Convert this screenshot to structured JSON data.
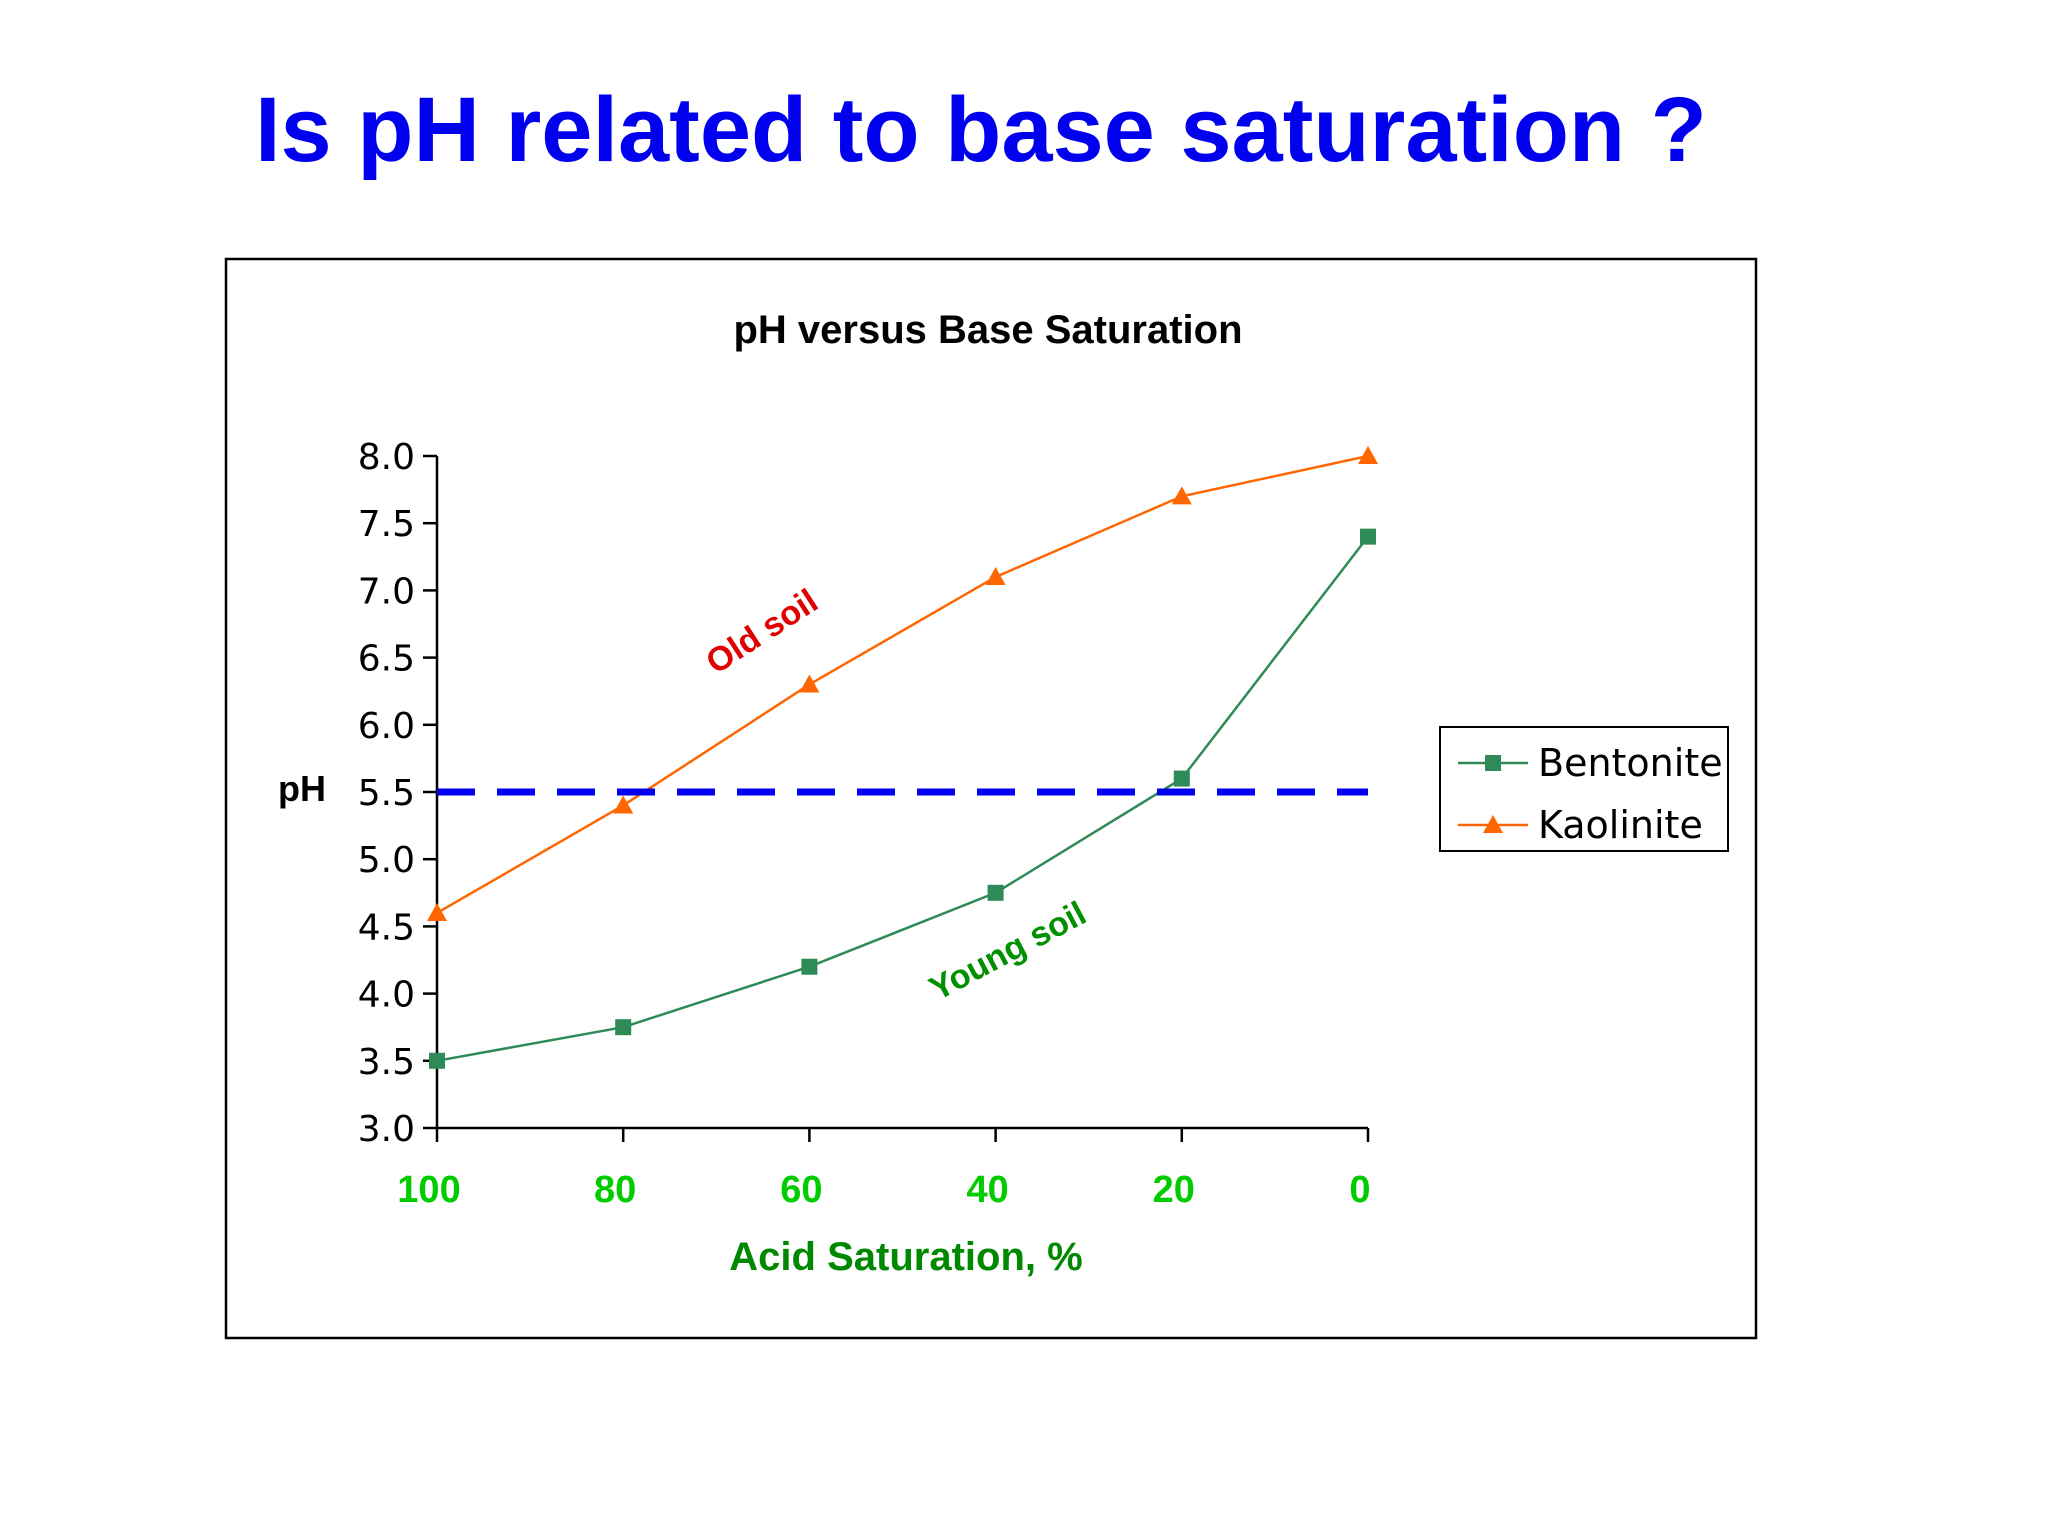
{
  "slide_title": "Is pH related to base saturation ?",
  "chart_data": {
    "type": "line",
    "title": "pH versus Base Saturation",
    "xlabel": "Acid Saturation, %",
    "ylabel": "pH",
    "x_reversed": true,
    "xlim": [
      0,
      100
    ],
    "ylim": [
      3.0,
      8.0
    ],
    "x": [
      100,
      80,
      60,
      40,
      20,
      0
    ],
    "x_tick_labels": [
      "100",
      "80",
      "60",
      "40",
      "20",
      "0"
    ],
    "y_tick_labels": [
      "3.0",
      "3.5",
      "4.0",
      "4.5",
      "5.0",
      "5.5",
      "6.0",
      "6.5",
      "7.0",
      "7.5",
      "8.0"
    ],
    "series": [
      {
        "name": "Bentonite",
        "color": "#2e8b57",
        "marker": "square",
        "values": [
          3.5,
          3.75,
          4.2,
          4.75,
          5.6,
          7.4
        ]
      },
      {
        "name": "Kaolinite",
        "color": "#ff6600",
        "marker": "triangle",
        "values": [
          4.6,
          5.4,
          6.3,
          7.1,
          7.7,
          8.0
        ]
      }
    ],
    "reference_line": {
      "y": 5.5,
      "color": "#0000ee",
      "style": "dashed"
    },
    "annotations": [
      {
        "text": "Old soil",
        "color": "#e00000"
      },
      {
        "text": "Young soil",
        "color": "#009000"
      }
    ],
    "legend": {
      "position": "right",
      "entries": [
        "Bentonite",
        "Kaolinite"
      ]
    },
    "grid": false,
    "axis_text_color": "#00cc00",
    "xlabel_color": "#008800"
  }
}
